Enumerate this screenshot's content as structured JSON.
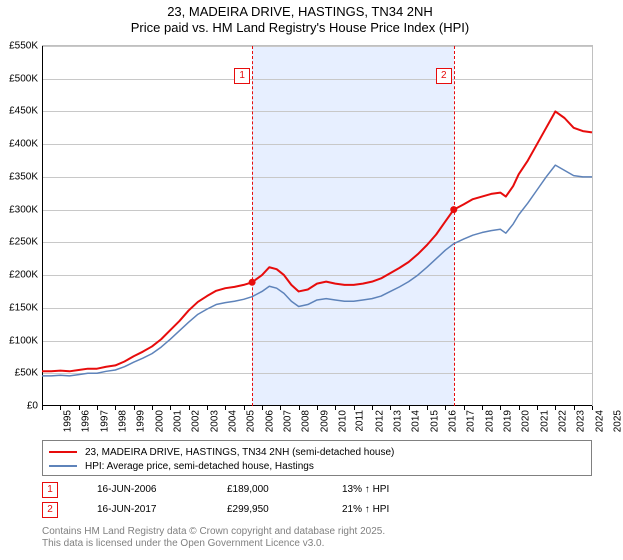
{
  "title_line1": "23, MADEIRA DRIVE, HASTINGS, TN34 2NH",
  "title_line2": "Price paid vs. HM Land Registry's House Price Index (HPI)",
  "title_fontsize": 13,
  "axis_fontsize": 10,
  "legend_fontsize": 10,
  "background_color": "#ffffff",
  "grid_color": "#c8c8c8",
  "axis_color": "#000000",
  "band_color": "#e7efff",
  "series": {
    "paid": {
      "label": "23, MADEIRA DRIVE, HASTINGS, TN34 2NH (semi-detached house)",
      "color": "#e70c0c",
      "width": 2
    },
    "hpi": {
      "label": "HPI: Average price, semi-detached house, Hastings",
      "color": "#5e83ba",
      "width": 1.5
    }
  },
  "y": {
    "min": 0,
    "max": 550,
    "step": 50,
    "prefix": "£",
    "suffix": "K",
    "zero_label": "£0"
  },
  "x": {
    "min": 1995,
    "max": 2025,
    "ticks": [
      1995,
      1996,
      1997,
      1998,
      1999,
      2000,
      2001,
      2002,
      2003,
      2004,
      2005,
      2006,
      2007,
      2008,
      2009,
      2010,
      2011,
      2012,
      2013,
      2014,
      2015,
      2016,
      2017,
      2018,
      2019,
      2020,
      2021,
      2022,
      2023,
      2024,
      2025
    ]
  },
  "events": [
    {
      "n": "1",
      "date_label": "16-JUN-2006",
      "price_label": "£189,000",
      "delta_label": "13% ↑ HPI",
      "x_year": 2006.46,
      "y_val": 189,
      "color": "#e70c0c"
    },
    {
      "n": "2",
      "date_label": "16-JUN-2017",
      "price_label": "£299,950",
      "delta_label": "21% ↑ HPI",
      "x_year": 2017.46,
      "y_val": 300,
      "color": "#e70c0c"
    }
  ],
  "band": {
    "from": 2006.46,
    "to": 2017.46
  },
  "attribution": {
    "l1": "Contains HM Land Registry data © Crown copyright and database right 2025.",
    "l2": "This data is licensed under the Open Government Licence v3.0.",
    "color": "#808080"
  },
  "data_hpi": [
    [
      1995.0,
      46
    ],
    [
      1995.5,
      46
    ],
    [
      1996.0,
      47
    ],
    [
      1996.5,
      46
    ],
    [
      1997.0,
      48
    ],
    [
      1997.5,
      50
    ],
    [
      1998.0,
      50
    ],
    [
      1998.5,
      53
    ],
    [
      1999.0,
      55
    ],
    [
      1999.5,
      60
    ],
    [
      2000.0,
      67
    ],
    [
      2000.5,
      73
    ],
    [
      2001.0,
      80
    ],
    [
      2001.5,
      90
    ],
    [
      2002.0,
      102
    ],
    [
      2002.5,
      115
    ],
    [
      2003.0,
      128
    ],
    [
      2003.5,
      140
    ],
    [
      2004.0,
      148
    ],
    [
      2004.5,
      155
    ],
    [
      2005.0,
      158
    ],
    [
      2005.5,
      160
    ],
    [
      2006.0,
      163
    ],
    [
      2006.46,
      167
    ],
    [
      2007.0,
      175
    ],
    [
      2007.4,
      183
    ],
    [
      2007.8,
      180
    ],
    [
      2008.2,
      172
    ],
    [
      2008.6,
      160
    ],
    [
      2009.0,
      152
    ],
    [
      2009.5,
      155
    ],
    [
      2010.0,
      162
    ],
    [
      2010.5,
      164
    ],
    [
      2011.0,
      162
    ],
    [
      2011.5,
      160
    ],
    [
      2012.0,
      160
    ],
    [
      2012.5,
      162
    ],
    [
      2013.0,
      164
    ],
    [
      2013.5,
      168
    ],
    [
      2014.0,
      175
    ],
    [
      2014.5,
      182
    ],
    [
      2015.0,
      190
    ],
    [
      2015.5,
      200
    ],
    [
      2016.0,
      212
    ],
    [
      2016.5,
      225
    ],
    [
      2017.0,
      238
    ],
    [
      2017.46,
      248
    ],
    [
      2018.0,
      255
    ],
    [
      2018.5,
      261
    ],
    [
      2019.0,
      265
    ],
    [
      2019.5,
      268
    ],
    [
      2020.0,
      270
    ],
    [
      2020.3,
      264
    ],
    [
      2020.7,
      278
    ],
    [
      2021.0,
      292
    ],
    [
      2021.5,
      310
    ],
    [
      2022.0,
      330
    ],
    [
      2022.5,
      350
    ],
    [
      2023.0,
      368
    ],
    [
      2023.5,
      360
    ],
    [
      2024.0,
      352
    ],
    [
      2024.5,
      350
    ],
    [
      2025.0,
      350
    ]
  ],
  "data_paid": [
    [
      1995.0,
      53
    ],
    [
      1995.5,
      53
    ],
    [
      1996.0,
      54
    ],
    [
      1996.5,
      53
    ],
    [
      1997.0,
      55
    ],
    [
      1997.5,
      57
    ],
    [
      1998.0,
      57
    ],
    [
      1998.5,
      60
    ],
    [
      1999.0,
      62
    ],
    [
      1999.5,
      68
    ],
    [
      2000.0,
      76
    ],
    [
      2000.5,
      83
    ],
    [
      2001.0,
      91
    ],
    [
      2001.5,
      102
    ],
    [
      2002.0,
      116
    ],
    [
      2002.5,
      130
    ],
    [
      2003.0,
      146
    ],
    [
      2003.5,
      159
    ],
    [
      2004.0,
      168
    ],
    [
      2004.5,
      176
    ],
    [
      2005.0,
      180
    ],
    [
      2005.5,
      182
    ],
    [
      2006.0,
      185
    ],
    [
      2006.46,
      189
    ],
    [
      2007.0,
      200
    ],
    [
      2007.4,
      212
    ],
    [
      2007.8,
      209
    ],
    [
      2008.2,
      200
    ],
    [
      2008.6,
      185
    ],
    [
      2009.0,
      175
    ],
    [
      2009.5,
      178
    ],
    [
      2010.0,
      187
    ],
    [
      2010.5,
      190
    ],
    [
      2011.0,
      187
    ],
    [
      2011.5,
      185
    ],
    [
      2012.0,
      185
    ],
    [
      2012.5,
      187
    ],
    [
      2013.0,
      190
    ],
    [
      2013.5,
      195
    ],
    [
      2014.0,
      203
    ],
    [
      2014.5,
      211
    ],
    [
      2015.0,
      220
    ],
    [
      2015.5,
      232
    ],
    [
      2016.0,
      246
    ],
    [
      2016.5,
      262
    ],
    [
      2017.0,
      282
    ],
    [
      2017.46,
      300
    ],
    [
      2018.0,
      308
    ],
    [
      2018.5,
      316
    ],
    [
      2019.0,
      320
    ],
    [
      2019.5,
      324
    ],
    [
      2020.0,
      326
    ],
    [
      2020.3,
      320
    ],
    [
      2020.7,
      336
    ],
    [
      2021.0,
      354
    ],
    [
      2021.5,
      375
    ],
    [
      2022.0,
      400
    ],
    [
      2022.5,
      425
    ],
    [
      2023.0,
      450
    ],
    [
      2023.5,
      440
    ],
    [
      2024.0,
      425
    ],
    [
      2024.5,
      420
    ],
    [
      2025.0,
      418
    ]
  ]
}
